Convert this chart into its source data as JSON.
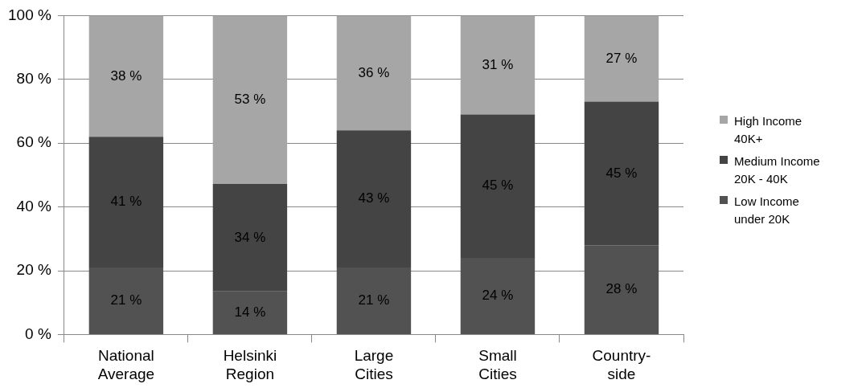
{
  "chart_data": {
    "type": "bar",
    "stacked": true,
    "categories": [
      "National Average",
      "Helsinki Region",
      "Large Cities",
      "Small Cities",
      "Country-side"
    ],
    "series": [
      {
        "name": "Low Income under 20K",
        "color": "#525252",
        "values": [
          21,
          13.5,
          21,
          24,
          28
        ],
        "value_labels": [
          "21 %",
          "14 %",
          "21 %",
          "24 %",
          "28 %"
        ]
      },
      {
        "name": "Medium Income 20K - 40K",
        "color": "#444444",
        "values": [
          41,
          33.7,
          43,
          45,
          45
        ],
        "value_labels": [
          "41 %",
          "34 %",
          "43 %",
          "45 %",
          "45 %"
        ]
      },
      {
        "name": "High Income 40K+",
        "color": "#a6a6a6",
        "values": [
          38,
          52.8,
          36,
          31,
          27
        ],
        "value_labels": [
          "38 %",
          "53 %",
          "36 %",
          "31 %",
          "27 %"
        ]
      }
    ],
    "ylim": [
      0,
      100
    ],
    "yticks": [
      {
        "value": 0,
        "label": "0 %"
      },
      {
        "value": 20,
        "label": "20 %"
      },
      {
        "value": 40,
        "label": "40 %"
      },
      {
        "value": 60,
        "label": "60 %"
      },
      {
        "value": 80,
        "label": "80 %"
      },
      {
        "value": 100,
        "label": "100 %"
      }
    ],
    "grid": "y",
    "legend": "right"
  }
}
